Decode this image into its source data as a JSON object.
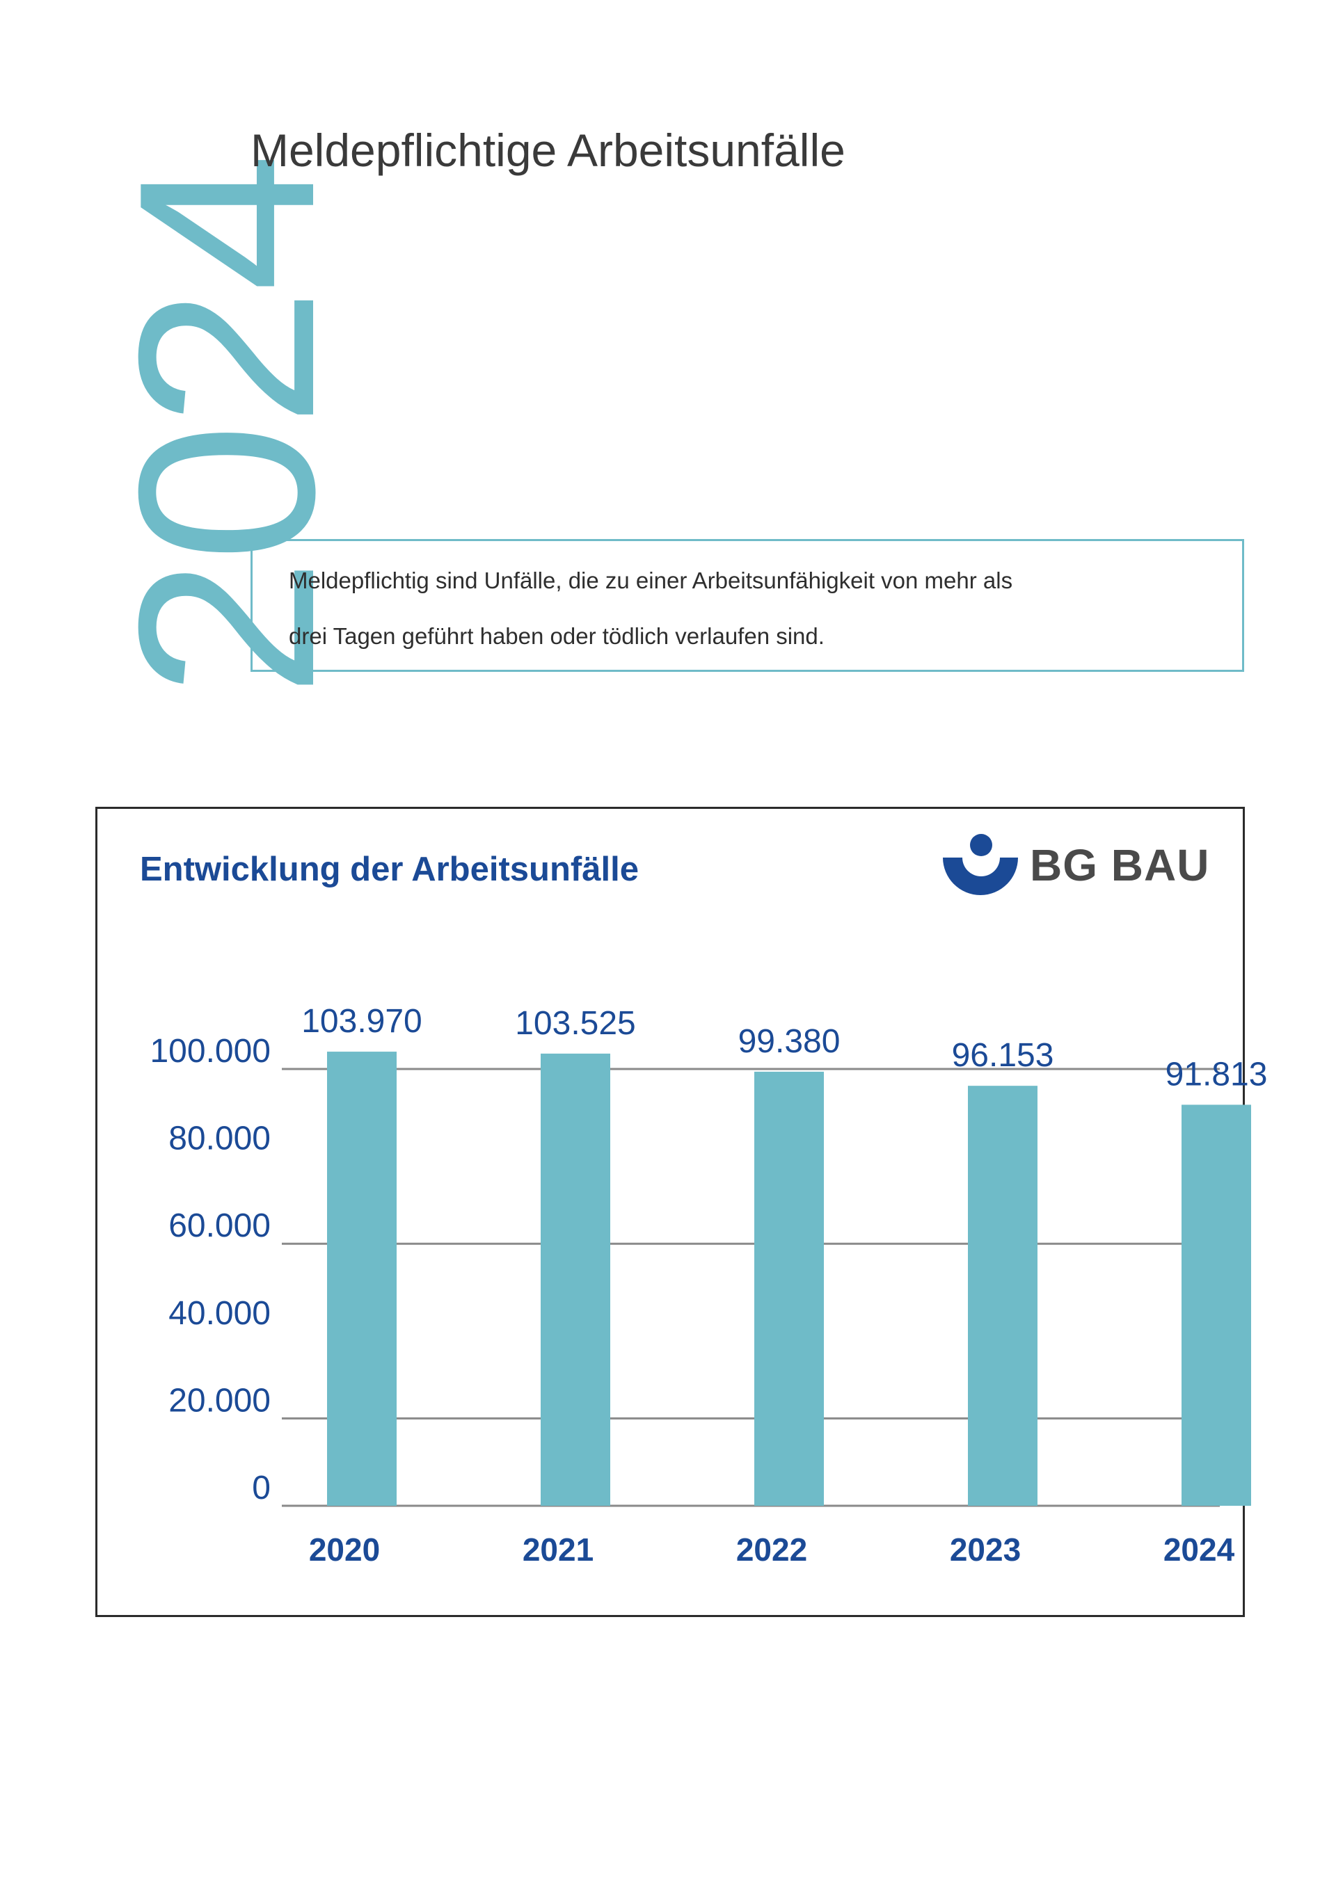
{
  "page": {
    "year_label": "2024",
    "title": "Meldepflichtige Arbeitsunfälle",
    "note_line1": "Meldepflichtig sind Unfälle, die zu einer Arbeitsunfähigkeit von mehr als",
    "note_line2": "drei Tagen geführt haben oder tödlich verlaufen sind."
  },
  "logo": {
    "text": "BG BAU",
    "icon": "bg-bau-emblem-icon",
    "color": "#1b4a96"
  },
  "colors": {
    "accent": "#6fbbc8",
    "text_blue": "#1b4a96",
    "grid": "#8a8a8a"
  },
  "chart_data": {
    "type": "bar",
    "title": "Entwicklung der Arbeitsunfälle",
    "categories": [
      "2020",
      "2021",
      "2022",
      "2023",
      "2024"
    ],
    "values": [
      103970,
      103525,
      99380,
      96153,
      91813
    ],
    "value_labels": [
      "103.970",
      "103.525",
      "99.380",
      "96.153",
      "91.813"
    ],
    "y_ticks": [
      0,
      20000,
      40000,
      60000,
      80000,
      100000
    ],
    "y_tick_labels": [
      "0",
      "20.000",
      "40.000",
      "60.000",
      "80.000",
      "100.000"
    ],
    "gridlines_at": [
      0,
      20000,
      60000,
      100000
    ],
    "ylim": [
      0,
      100000
    ],
    "xlabel": "",
    "ylabel": "",
    "legend": "none"
  }
}
